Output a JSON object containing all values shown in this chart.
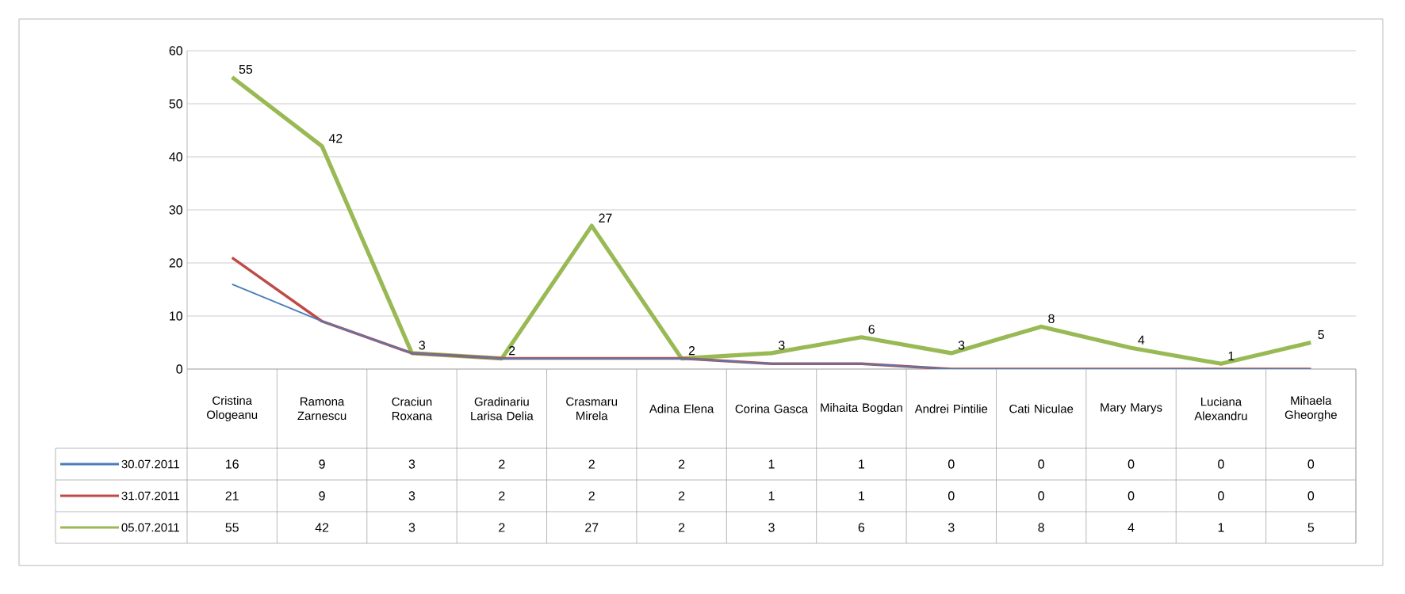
{
  "chart_data": {
    "type": "line",
    "categories": [
      "Cristina Ologeanu",
      "Ramona Zarnescu",
      "Craciun Roxana",
      "Gradinariu Larisa Delia",
      "Crasmaru Mirela",
      "Adina Elena",
      "Corina Gasca",
      "Mihaita Bogdan",
      "Andrei Pintilie",
      "Cati Niculae",
      "Mary Marys",
      "Luciana Alexandru",
      "Mihaela Gheorghe"
    ],
    "series": [
      {
        "name": "30.07.2011",
        "color": "#4a7ebb",
        "values": [
          16,
          9,
          3,
          2,
          2,
          2,
          1,
          1,
          0,
          0,
          0,
          0,
          0
        ]
      },
      {
        "name": "31.07.2011",
        "color": "#be4b48",
        "values": [
          21,
          9,
          3,
          2,
          2,
          2,
          1,
          1,
          0,
          0,
          0,
          0,
          0
        ]
      },
      {
        "name": "05.07.2011",
        "color": "#98b954",
        "values": [
          55,
          42,
          3,
          2,
          27,
          2,
          3,
          6,
          3,
          8,
          4,
          1,
          5
        ],
        "value_labels": [
          "55",
          "42",
          "3",
          "2",
          "27",
          "2",
          "3",
          "6",
          "3",
          "8",
          "4",
          "1",
          "5"
        ]
      }
    ],
    "ylim": [
      0,
      60
    ],
    "yticks": [
      0,
      10,
      20,
      30,
      40,
      50,
      60
    ],
    "grid": "y",
    "legend": "bottom",
    "data_labels": true
  }
}
